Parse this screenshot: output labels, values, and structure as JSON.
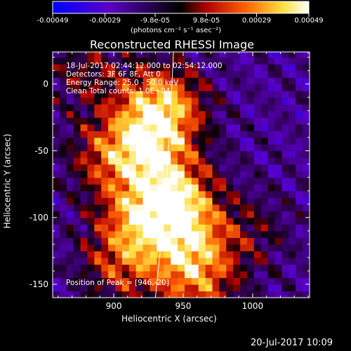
{
  "colorbar": {
    "ticks": [
      "-0.00049",
      "-0.00029",
      "-9.8e-05",
      "9.8e-05",
      "0.00029",
      "0.00049"
    ],
    "tick_values": [
      -0.00049,
      -0.00029,
      -9.8e-05,
      9.8e-05,
      0.00029,
      0.00049
    ],
    "range": [
      -0.00049,
      0.00049
    ],
    "unit": "(photons cm⁻² s⁻¹ asec⁻²)",
    "colors": [
      "#0000ff",
      "#5a00c8",
      "#000000",
      "#c80000",
      "#ff8000",
      "#ffff60",
      "#ffffff"
    ]
  },
  "chart_data": {
    "type": "heatmap",
    "title": "Reconstructed RHESSI Image",
    "xlabel": "Heliocentric X (arcsec)",
    "ylabel": "Heliocentric Y (arcsec)",
    "xlim": [
      856,
      1041
    ],
    "ylim": [
      -160,
      24
    ],
    "x_ticks": [
      900,
      950,
      1000
    ],
    "y_ticks": [
      0,
      -50,
      -100,
      -150
    ],
    "info_lines": [
      "18-Jul-2017 02:44:12.000 to 02:54:12.000",
      "Detectors: 3F 6F 8F, Att 0",
      "Energy Range: 25.0 - 50.0 keV",
      "Clean     Total counts: 1.0E+04"
    ],
    "peak_label": "Position of Peak = [946,-20]",
    "peak": [
      946,
      -20
    ],
    "limb_curve": [
      [
        943,
        24
      ],
      [
        940,
        -40
      ],
      [
        936,
        -100
      ],
      [
        930,
        -160
      ]
    ],
    "sources": [
      {
        "x": 935,
        "y": -15,
        "w": 0.00049
      },
      {
        "x": 925,
        "y": -45,
        "w": 0.00042
      },
      {
        "x": 945,
        "y": -85,
        "w": 0.00046
      },
      {
        "x": 920,
        "y": -100,
        "w": 0.00038
      },
      {
        "x": 955,
        "y": -120,
        "w": 0.00035
      },
      {
        "x": 905,
        "y": -135,
        "w": 0.0003
      },
      {
        "x": 960,
        "y": -150,
        "w": 0.00032
      },
      {
        "x": 895,
        "y": -55,
        "w": 0.00028
      },
      {
        "x": 880,
        "y": 10,
        "w": 0.0002
      },
      {
        "x": 1000,
        "y": -110,
        "w": 0.00015
      }
    ]
  },
  "footer": {
    "date": "20-Jul-2017 10:09"
  }
}
